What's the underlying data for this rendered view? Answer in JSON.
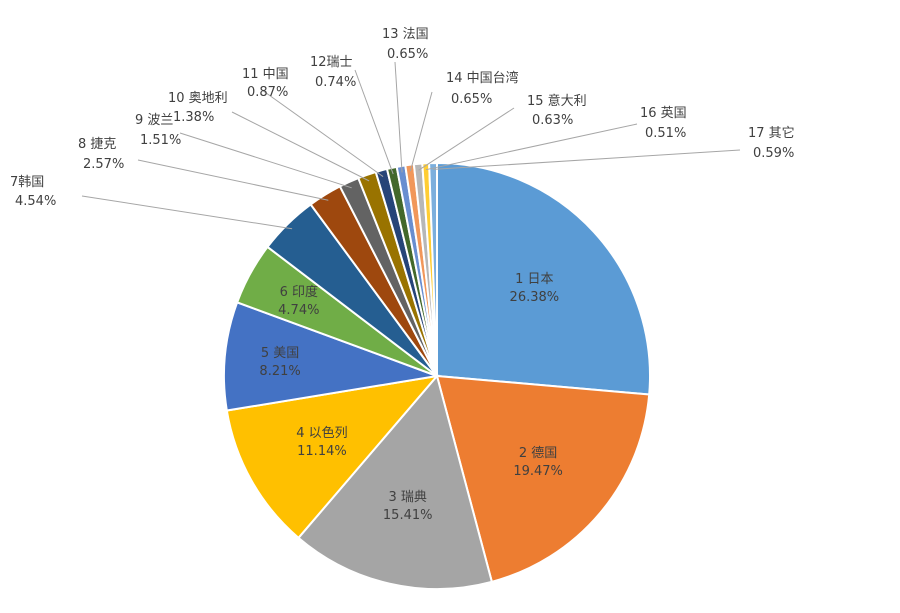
{
  "chart_data": {
    "type": "pie",
    "title": "",
    "start_angle_deg": 0,
    "direction": "clockwise",
    "slices": [
      {
        "name": "1 日本",
        "value": 26.38,
        "label": "26.38%",
        "color": "#5b9bd5"
      },
      {
        "name": "2 德国",
        "value": 19.47,
        "label": "19.47%",
        "color": "#ed7d31"
      },
      {
        "name": "3 瑞典",
        "value": 15.41,
        "label": "15.41%",
        "color": "#a5a5a5"
      },
      {
        "name": "4 以色列",
        "value": 11.14,
        "label": "11.14%",
        "color": "#ffc000"
      },
      {
        "name": "5 美国",
        "value": 8.21,
        "label": "8.21%",
        "color": "#4472c4"
      },
      {
        "name": "6 印度",
        "value": 4.74,
        "label": "4.74%",
        "color": "#70ad47"
      },
      {
        "name": "7韩国",
        "value": 4.54,
        "label": "4.54%",
        "color": "#255e91"
      },
      {
        "name": "8 捷克",
        "value": 2.57,
        "label": "2.57%",
        "color": "#9e480e"
      },
      {
        "name": "9 波兰",
        "value": 1.51,
        "label": "1.51%",
        "color": "#636363"
      },
      {
        "name": "10 奥地利",
        "value": 1.38,
        "label": "1.38%",
        "color": "#997300"
      },
      {
        "name": "11 中国",
        "value": 0.87,
        "label": "0.87%",
        "color": "#264478"
      },
      {
        "name": "12瑞士",
        "value": 0.74,
        "label": "0.74%",
        "color": "#43682b"
      },
      {
        "name": "13 法国",
        "value": 0.65,
        "label": "0.65%",
        "color": "#698ed0"
      },
      {
        "name": "14 中国台湾",
        "value": 0.65,
        "label": "0.65%",
        "color": "#f1975a"
      },
      {
        "name": "15 意大利",
        "value": 0.63,
        "label": "0.63%",
        "color": "#b7b7b7"
      },
      {
        "name": "16 英国",
        "value": 0.51,
        "label": "0.51%",
        "color": "#ffcd33"
      },
      {
        "name": "17 其它",
        "value": 0.59,
        "label": "0.59%",
        "color": "#7cafdd"
      }
    ]
  }
}
